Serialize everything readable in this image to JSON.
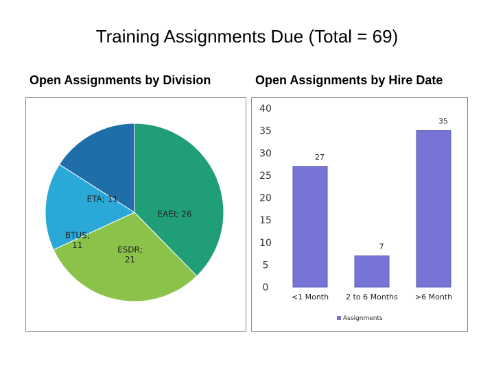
{
  "page": {
    "title": "Training Assignments Due (Total = 69)",
    "left_subtitle": "Open Assignments by Division",
    "right_subtitle": "Open Assignments by Hire Date"
  },
  "chart_data": [
    {
      "type": "pie",
      "title": "Open Assignments by Division",
      "slices": [
        {
          "label": "EAEI",
          "value": 26,
          "data_label": "EAEI; 26",
          "color": "#1f9e77"
        },
        {
          "label": "ESDR",
          "value": 21,
          "data_label": "ESDR; 21",
          "color": "#8bc34a"
        },
        {
          "label": "BTUS",
          "value": 11,
          "data_label": "BTUS; 11",
          "color": "#2aa8d8"
        },
        {
          "label": "ETA",
          "value": 11,
          "data_label": "ETA; 11",
          "color": "#1f6ea8"
        }
      ],
      "start": "12 o'clock, clockwise"
    },
    {
      "type": "bar",
      "title": "Open Assignments by Hire Date",
      "categories": [
        "<1 Month",
        "2 to 6 Months",
        ">6 Month"
      ],
      "series": [
        {
          "name": "Assignments",
          "values": [
            27,
            7,
            35
          ],
          "color": "#7674d4"
        }
      ],
      "ylim": [
        0,
        40
      ],
      "yticks": [
        0,
        5,
        10,
        15,
        20,
        25,
        30,
        35,
        40
      ],
      "legend": "bottom",
      "data_labels": true,
      "grid": false
    }
  ]
}
